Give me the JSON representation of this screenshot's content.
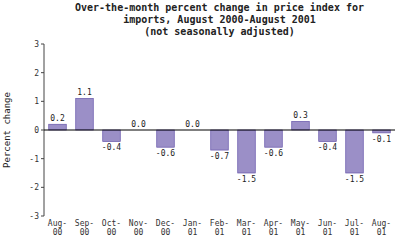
{
  "chart_data": {
    "type": "bar",
    "title": "Over-the-month percent change in price index for\nimports, August 2000-August 2001\n(not seasonally adjusted)",
    "y_label": "Percent change",
    "categories": [
      "Aug-\n00",
      "Sep-\n00",
      "Oct-\n00",
      "Nov-\n00",
      "Dec-\n00",
      "Jan-\n01",
      "Feb-\n01",
      "Mar-\n01",
      "Apr-\n01",
      "May-\n01",
      "Jun-\n01",
      "Jul-\n01",
      "Aug-\n01"
    ],
    "values": [
      0.2,
      1.1,
      -0.4,
      0.0,
      -0.6,
      0.0,
      -0.7,
      -1.5,
      -0.6,
      0.3,
      -0.4,
      -1.5,
      -0.1
    ],
    "value_labels": [
      "0.2",
      "1.1",
      "-0.4",
      "0.0",
      "-0.6",
      "0.0",
      "-0.7",
      "-1.5",
      "-0.6",
      "0.3",
      "-0.4",
      "-1.5",
      "-0.1"
    ],
    "data_labels": true,
    "color": "#9b8fc7",
    "ylim": [
      -3,
      3
    ],
    "yticks": [
      -3,
      -2,
      -1,
      0,
      1,
      2,
      3
    ],
    "grid": false
  }
}
